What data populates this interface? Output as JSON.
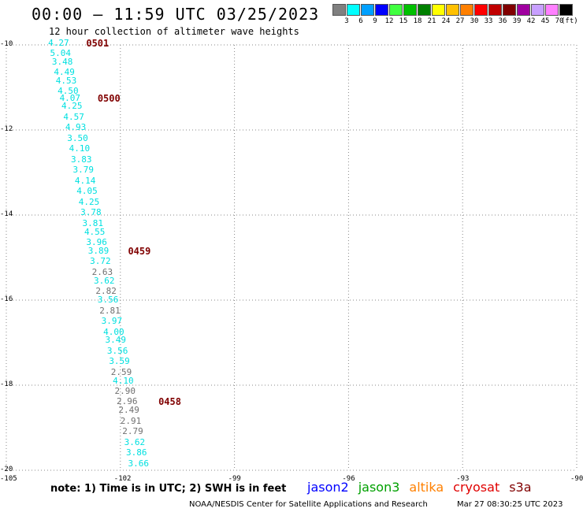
{
  "header": {
    "title": "00:00 – 11:59 UTC 03/25/2023",
    "subtitle": "12 hour collection of altimeter wave heights"
  },
  "legend": {
    "units": "(ft)",
    "bins": [
      {
        "label": "3",
        "color": "#808080"
      },
      {
        "label": "6",
        "color": "#00ffff"
      },
      {
        "label": "9",
        "color": "#00a0ff"
      },
      {
        "label": "12",
        "color": "#0000ff"
      },
      {
        "label": "15",
        "color": "#40ff40"
      },
      {
        "label": "18",
        "color": "#00c000"
      },
      {
        "label": "21",
        "color": "#008000"
      },
      {
        "label": "24",
        "color": "#ffff00"
      },
      {
        "label": "27",
        "color": "#ffc000"
      },
      {
        "label": "30",
        "color": "#ff8000"
      },
      {
        "label": "33",
        "color": "#ff0000"
      },
      {
        "label": "36",
        "color": "#c00000"
      },
      {
        "label": "39",
        "color": "#800000"
      },
      {
        "label": "42",
        "color": "#a000a0"
      },
      {
        "label": "45",
        "color": "#c8a0ff"
      },
      {
        "label": "70",
        "color": "#ff80ff"
      },
      {
        "label": "",
        "color": "#000000"
      }
    ]
  },
  "map": {
    "lon_ticks": [
      "-105",
      "-102",
      "-99",
      "-96",
      "-93",
      "-90"
    ],
    "lat_ticks": [
      "-10",
      "-12",
      "-14",
      "-16",
      "-18",
      "-20"
    ],
    "lon_range": [
      -105,
      -90
    ],
    "lat_range": [
      -10,
      -20
    ],
    "grid": "dotted",
    "times": [
      {
        "label": "0501",
        "lon": -102.9,
        "lat": -9.97
      },
      {
        "label": "0500",
        "lon": -102.6,
        "lat": -11.25
      },
      {
        "label": "0459",
        "lon": -101.8,
        "lat": -14.85
      },
      {
        "label": "0458",
        "lon": -101.0,
        "lat": -18.38
      }
    ],
    "observations": [
      {
        "value": "4.27",
        "lon": -103.9,
        "lat": -9.97,
        "color": "#00e0e0"
      },
      {
        "value": "5.04",
        "lon": -103.85,
        "lat": -10.2,
        "color": "#00e0e0"
      },
      {
        "value": "3.48",
        "lon": -103.8,
        "lat": -10.4,
        "color": "#00e0e0"
      },
      {
        "value": "4.49",
        "lon": -103.75,
        "lat": -10.65,
        "color": "#00e0e0"
      },
      {
        "value": "4.53",
        "lon": -103.7,
        "lat": -10.85,
        "color": "#00e0e0"
      },
      {
        "value": "4.50",
        "lon": -103.65,
        "lat": -11.1,
        "color": "#00e0e0"
      },
      {
        "value": "4.07",
        "lon": -103.6,
        "lat": -11.25,
        "color": "#00e0e0"
      },
      {
        "value": "4.25",
        "lon": -103.55,
        "lat": -11.45,
        "color": "#00e0e0"
      },
      {
        "value": "4.57",
        "lon": -103.5,
        "lat": -11.7,
        "color": "#00e0e0"
      },
      {
        "value": "4.93",
        "lon": -103.45,
        "lat": -11.95,
        "color": "#00e0e0"
      },
      {
        "value": "3.50",
        "lon": -103.4,
        "lat": -12.2,
        "color": "#00e0e0"
      },
      {
        "value": "4.10",
        "lon": -103.35,
        "lat": -12.45,
        "color": "#00e0e0"
      },
      {
        "value": "3.83",
        "lon": -103.3,
        "lat": -12.7,
        "color": "#00e0e0"
      },
      {
        "value": "3.79",
        "lon": -103.25,
        "lat": -12.95,
        "color": "#00e0e0"
      },
      {
        "value": "4.14",
        "lon": -103.2,
        "lat": -13.2,
        "color": "#00e0e0"
      },
      {
        "value": "4.05",
        "lon": -103.15,
        "lat": -13.45,
        "color": "#00e0e0"
      },
      {
        "value": "4.25",
        "lon": -103.1,
        "lat": -13.7,
        "color": "#00e0e0"
      },
      {
        "value": "3.78",
        "lon": -103.05,
        "lat": -13.95,
        "color": "#00e0e0"
      },
      {
        "value": "3.81",
        "lon": -103.0,
        "lat": -14.2,
        "color": "#00e0e0"
      },
      {
        "value": "4.55",
        "lon": -102.95,
        "lat": -14.4,
        "color": "#00e0e0"
      },
      {
        "value": "3.96",
        "lon": -102.9,
        "lat": -14.65,
        "color": "#00e0e0"
      },
      {
        "value": "3.89",
        "lon": -102.85,
        "lat": -14.85,
        "color": "#00e0e0"
      },
      {
        "value": "3.72",
        "lon": -102.8,
        "lat": -15.1,
        "color": "#00e0e0"
      },
      {
        "value": "2.63",
        "lon": -102.75,
        "lat": -15.35,
        "color": "#707070"
      },
      {
        "value": "3.62",
        "lon": -102.7,
        "lat": -15.55,
        "color": "#00e0e0"
      },
      {
        "value": "2.82",
        "lon": -102.65,
        "lat": -15.8,
        "color": "#707070"
      },
      {
        "value": "3.56",
        "lon": -102.6,
        "lat": -16.0,
        "color": "#00e0e0"
      },
      {
        "value": "2.81",
        "lon": -102.55,
        "lat": -16.25,
        "color": "#707070"
      },
      {
        "value": "3.97",
        "lon": -102.5,
        "lat": -16.5,
        "color": "#00e0e0"
      },
      {
        "value": "4.00",
        "lon": -102.45,
        "lat": -16.75,
        "color": "#00e0e0"
      },
      {
        "value": "3.49",
        "lon": -102.4,
        "lat": -16.95,
        "color": "#00e0e0"
      },
      {
        "value": "3.56",
        "lon": -102.35,
        "lat": -17.2,
        "color": "#00e0e0"
      },
      {
        "value": "3.59",
        "lon": -102.3,
        "lat": -17.45,
        "color": "#00e0e0"
      },
      {
        "value": "2.59",
        "lon": -102.25,
        "lat": -17.7,
        "color": "#707070"
      },
      {
        "value": "4.10",
        "lon": -102.2,
        "lat": -17.9,
        "color": "#00e0e0"
      },
      {
        "value": "2.90",
        "lon": -102.15,
        "lat": -18.15,
        "color": "#707070"
      },
      {
        "value": "2.96",
        "lon": -102.1,
        "lat": -18.38,
        "color": "#707070"
      },
      {
        "value": "2.49",
        "lon": -102.05,
        "lat": -18.6,
        "color": "#707070"
      },
      {
        "value": "2.91",
        "lon": -102.0,
        "lat": -18.85,
        "color": "#707070"
      },
      {
        "value": "2.79",
        "lon": -101.95,
        "lat": -19.1,
        "color": "#707070"
      },
      {
        "value": "3.62",
        "lon": -101.9,
        "lat": -19.35,
        "color": "#00e0e0"
      },
      {
        "value": "3.86",
        "lon": -101.85,
        "lat": -19.6,
        "color": "#00e0e0"
      },
      {
        "value": "3.66",
        "lon": -101.8,
        "lat": -19.85,
        "color": "#00e0e0"
      }
    ]
  },
  "footer": {
    "note": "note: 1) Time is in UTC; 2) SWH is in feet",
    "satellites": [
      {
        "name": "jason2",
        "color": "#0000ff"
      },
      {
        "name": "jason3",
        "color": "#00a000"
      },
      {
        "name": "altika",
        "color": "#ff8000"
      },
      {
        "name": "cryosat",
        "color": "#e00000"
      },
      {
        "name": "s3a",
        "color": "#800000"
      }
    ],
    "credit": "NOAA/NESDIS Center for Satellite Applications and Research",
    "timestamp": "Mar 27 08:30:25 UTC 2023"
  }
}
